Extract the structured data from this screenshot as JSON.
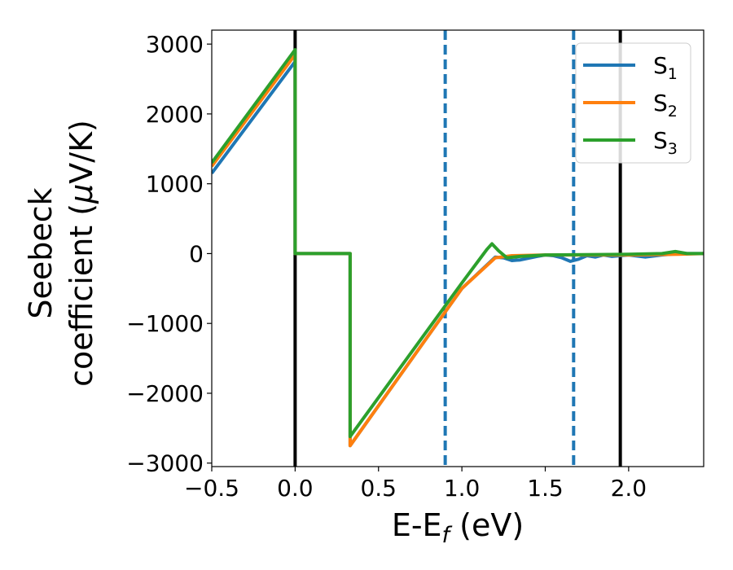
{
  "chart_data": {
    "type": "line",
    "xlabel_main": "E-E",
    "xlabel_sub": "f",
    "xlabel_unit": " (eV)",
    "ylabel_line1": "Seebeck",
    "ylabel_line2_prefix": "coefficient  (",
    "ylabel_mu": "μ",
    "ylabel_line2_suffix": "V/K)",
    "xlim": [
      -0.5,
      2.45
    ],
    "ylim": [
      -3050,
      3200
    ],
    "xticks": [
      -0.5,
      0.0,
      0.5,
      1.0,
      1.5,
      2.0
    ],
    "xtick_labels": [
      "−0.5",
      "0.0",
      "0.5",
      "1.0",
      "1.5",
      "2.0"
    ],
    "yticks": [
      -3000,
      -2000,
      -1000,
      0,
      1000,
      2000,
      3000
    ],
    "ytick_labels": [
      "−3000",
      "−2000",
      "−1000",
      "0",
      "1000",
      "2000",
      "3000"
    ],
    "legend_placement": "top-right",
    "grid": false,
    "vlines": [
      {
        "x": 0.0,
        "style": "solid",
        "color": "#000000"
      },
      {
        "x": 0.9,
        "style": "dashed",
        "color": "#1f77b4"
      },
      {
        "x": 1.67,
        "style": "dashed",
        "color": "#1f77b4"
      },
      {
        "x": 1.95,
        "style": "solid",
        "color": "#000000"
      }
    ],
    "series": [
      {
        "name_main": "S",
        "name_sub": "1",
        "color": "#1f77b4",
        "x": [
          -0.5,
          0.0,
          0.0,
          0.33,
          0.33,
          1.0,
          1.2,
          1.25,
          1.3,
          1.35,
          1.45,
          1.5,
          1.55,
          1.6,
          1.65,
          1.7,
          1.75,
          1.8,
          1.85,
          1.9,
          2.0,
          2.1,
          2.2,
          2.3,
          2.45
        ],
        "y": [
          1150,
          2750,
          0,
          0,
          -2750,
          -500,
          -50,
          -60,
          -100,
          -90,
          -40,
          -20,
          -30,
          -60,
          -110,
          -80,
          -30,
          -50,
          -20,
          -40,
          -20,
          -50,
          -20,
          0,
          0
        ]
      },
      {
        "name_main": "S",
        "name_sub": "2",
        "color": "#ff7f0e",
        "x": [
          -0.5,
          0.0,
          0.0,
          0.33,
          0.33,
          1.0,
          1.2,
          1.3,
          1.5,
          2.0,
          2.3,
          2.45
        ],
        "y": [
          1250,
          2850,
          0,
          0,
          -2750,
          -500,
          -60,
          -30,
          -20,
          -20,
          -10,
          0
        ]
      },
      {
        "name_main": "S",
        "name_sub": "3",
        "color": "#2ca02c",
        "x": [
          -0.5,
          0.0,
          0.0,
          0.33,
          0.33,
          1.0,
          1.1,
          1.15,
          1.18,
          1.22,
          1.27,
          1.35,
          1.5,
          2.0,
          2.2,
          2.28,
          2.35,
          2.45
        ],
        "y": [
          1300,
          2920,
          0,
          0,
          -2620,
          -420,
          -100,
          60,
          140,
          40,
          -60,
          -40,
          -20,
          -10,
          0,
          30,
          0,
          0
        ]
      }
    ]
  }
}
